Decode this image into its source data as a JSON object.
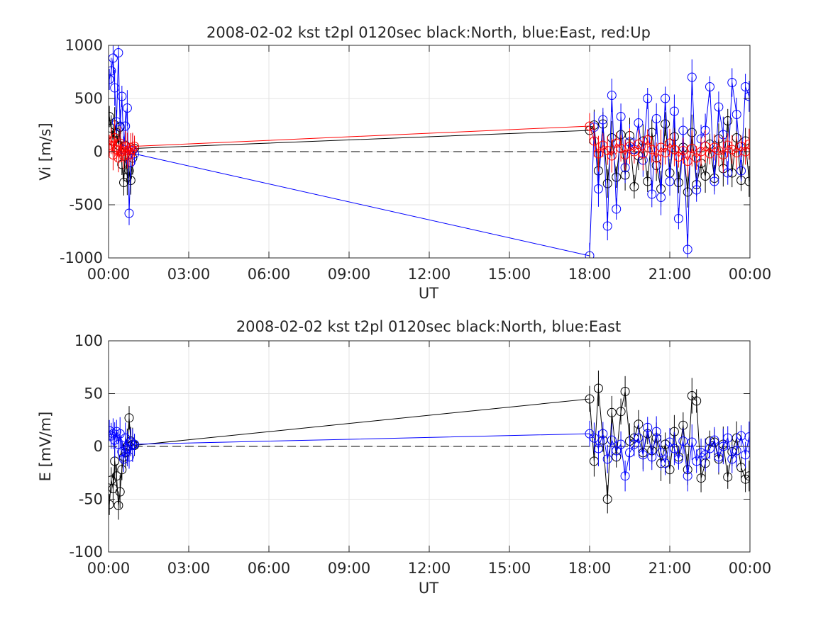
{
  "chart_data": [
    {
      "type": "line",
      "title": "2008-02-02 kst t2pl 0120sec black:North, blue:East, red:Up",
      "xlabel": "UT",
      "ylabel": "Vi [m/s]",
      "xlim_hours": [
        0,
        24
      ],
      "ylim": [
        -1000,
        1000
      ],
      "xtick_labels": [
        "00:00",
        "03:00",
        "06:00",
        "09:00",
        "12:00",
        "15:00",
        "18:00",
        "21:00",
        "00:00"
      ],
      "ytick_values": [
        -1000,
        -500,
        0,
        500,
        1000
      ],
      "ytick_labels": [
        "-1000",
        "-500",
        "0",
        "500",
        "1000"
      ],
      "grid": true,
      "zero_line": "dashed",
      "series": [
        {
          "name": "North",
          "color": "#000000",
          "x_hours": [
            0.03,
            0.1,
            0.17,
            0.23,
            0.3,
            0.37,
            0.43,
            0.5,
            0.57,
            0.63,
            0.7,
            0.77,
            0.83,
            0.9,
            0.97,
            18.0,
            18.17,
            18.33,
            18.5,
            18.67,
            18.83,
            19.0,
            19.17,
            19.33,
            19.5,
            19.67,
            19.83,
            20.0,
            20.17,
            20.33,
            20.5,
            20.67,
            20.83,
            21.0,
            21.17,
            21.33,
            21.5,
            21.67,
            21.83,
            22.0,
            22.17,
            22.33,
            22.5,
            22.67,
            22.83,
            23.0,
            23.17,
            23.33,
            23.5,
            23.67,
            23.83,
            23.97
          ],
          "values": [
            330,
            220,
            100,
            250,
            180,
            60,
            230,
            -120,
            -290,
            60,
            -240,
            -180,
            -270,
            -60,
            30,
            200,
            250,
            -180,
            260,
            -300,
            130,
            -240,
            160,
            -220,
            150,
            -330,
            -40,
            100,
            -280,
            180,
            -130,
            -350,
            260,
            -200,
            140,
            -290,
            40,
            -380,
            180,
            -310,
            -110,
            -230,
            70,
            -250,
            120,
            -160,
            290,
            -200,
            130,
            -270,
            100,
            -280
          ],
          "error_bars": true
        },
        {
          "name": "East",
          "color": "#0000ff",
          "x_hours": [
            0.03,
            0.1,
            0.17,
            0.23,
            0.3,
            0.37,
            0.43,
            0.5,
            0.57,
            0.63,
            0.7,
            0.77,
            0.83,
            0.9,
            0.97,
            18.0,
            18.17,
            18.33,
            18.5,
            18.67,
            18.83,
            19.0,
            19.17,
            19.33,
            19.5,
            19.67,
            19.83,
            20.0,
            20.17,
            20.33,
            20.5,
            20.67,
            20.83,
            21.0,
            21.17,
            21.33,
            21.5,
            21.67,
            21.83,
            22.0,
            22.17,
            22.33,
            22.5,
            22.67,
            22.83,
            23.0,
            23.17,
            23.33,
            23.5,
            23.67,
            23.83,
            23.97
          ],
          "values": [
            680,
            760,
            880,
            600,
            280,
            930,
            240,
            520,
            20,
            240,
            410,
            -580,
            -100,
            10,
            -20,
            -980,
            230,
            -350,
            300,
            -700,
            530,
            -540,
            330,
            -150,
            90,
            20,
            270,
            -80,
            500,
            -400,
            310,
            -430,
            500,
            -280,
            380,
            -630,
            200,
            -920,
            700,
            -360,
            120,
            200,
            610,
            -280,
            420,
            160,
            -200,
            650,
            350,
            -180,
            610,
            520
          ],
          "error_bars": true
        },
        {
          "name": "Up",
          "color": "#ff0000",
          "x_hours": [
            0.03,
            0.1,
            0.17,
            0.23,
            0.3,
            0.37,
            0.43,
            0.5,
            0.57,
            0.63,
            0.7,
            0.77,
            0.83,
            0.9,
            0.97,
            18.0,
            18.17,
            18.33,
            18.5,
            18.67,
            18.83,
            19.0,
            19.17,
            19.33,
            19.5,
            19.67,
            19.83,
            20.0,
            20.17,
            20.33,
            20.5,
            20.67,
            20.83,
            21.0,
            21.17,
            21.33,
            21.5,
            21.67,
            21.83,
            22.0,
            22.17,
            22.33,
            22.5,
            22.67,
            22.83,
            23.0,
            23.17,
            23.33,
            23.5,
            23.67,
            23.83,
            23.97
          ],
          "values": [
            60,
            100,
            -30,
            130,
            20,
            -60,
            80,
            0,
            -40,
            50,
            10,
            -30,
            40,
            20,
            50,
            240,
            100,
            -20,
            60,
            10,
            -40,
            80,
            30,
            -30,
            50,
            0,
            70,
            -20,
            110,
            20,
            -60,
            40,
            -10,
            80,
            20,
            -50,
            10,
            -90,
            30,
            -60,
            0,
            50,
            -20,
            40,
            10,
            -30,
            60,
            20,
            -10,
            50,
            0,
            70
          ],
          "error_bars": true
        }
      ]
    },
    {
      "type": "line",
      "title": "2008-02-02 kst t2pl 0120sec black:North, blue:East",
      "xlabel": "UT",
      "ylabel": "E [mV/m]",
      "xlim_hours": [
        0,
        24
      ],
      "ylim": [
        -100,
        100
      ],
      "xtick_labels": [
        "00:00",
        "03:00",
        "06:00",
        "09:00",
        "12:00",
        "15:00",
        "18:00",
        "21:00",
        "00:00"
      ],
      "ytick_values": [
        -100,
        -50,
        0,
        50,
        100
      ],
      "ytick_labels": [
        "-100",
        "-50",
        "0",
        "50",
        "100"
      ],
      "grid": true,
      "zero_line": "dashed",
      "series": [
        {
          "name": "North",
          "color": "#000000",
          "x_hours": [
            0.03,
            0.1,
            0.17,
            0.23,
            0.3,
            0.37,
            0.43,
            0.5,
            0.57,
            0.63,
            0.7,
            0.77,
            0.83,
            0.9,
            0.97,
            18.0,
            18.17,
            18.33,
            18.5,
            18.67,
            18.83,
            19.0,
            19.17,
            19.33,
            19.5,
            19.67,
            19.83,
            20.0,
            20.17,
            20.33,
            20.5,
            20.67,
            20.83,
            21.0,
            21.17,
            21.33,
            21.5,
            21.67,
            21.83,
            22.0,
            22.17,
            22.33,
            22.5,
            22.67,
            22.83,
            23.0,
            23.17,
            23.33,
            23.5,
            23.67,
            23.83,
            23.97
          ],
          "values": [
            -55,
            -32,
            -40,
            -14,
            -28,
            -56,
            -43,
            -22,
            -10,
            -6,
            0,
            27,
            5,
            2,
            1,
            45,
            -14,
            55,
            6,
            -50,
            32,
            -10,
            33,
            52,
            5,
            8,
            21,
            -6,
            12,
            -4,
            8,
            -16,
            2,
            -22,
            14,
            -10,
            20,
            -22,
            48,
            43,
            -30,
            -16,
            5,
            4,
            -12,
            2,
            -29,
            -5,
            8,
            -20,
            -31,
            -28
          ],
          "error_bars": true
        },
        {
          "name": "East",
          "color": "#0000ff",
          "x_hours": [
            0.03,
            0.1,
            0.17,
            0.23,
            0.3,
            0.37,
            0.43,
            0.5,
            0.57,
            0.63,
            0.7,
            0.77,
            0.83,
            0.9,
            0.97,
            18.0,
            18.17,
            18.33,
            18.5,
            18.67,
            18.83,
            19.0,
            19.17,
            19.33,
            19.5,
            19.67,
            19.83,
            20.0,
            20.17,
            20.33,
            20.5,
            20.67,
            20.83,
            21.0,
            21.17,
            21.33,
            21.5,
            21.67,
            21.83,
            22.0,
            22.17,
            22.33,
            22.5,
            22.67,
            22.83,
            23.0,
            23.17,
            23.33,
            23.5,
            23.67,
            23.83,
            23.97
          ],
          "values": [
            15,
            10,
            12,
            6,
            14,
            2,
            12,
            -5,
            -12,
            8,
            -2,
            -10,
            4,
            1,
            2,
            12,
            8,
            -2,
            12,
            -12,
            6,
            -4,
            2,
            -28,
            -6,
            2,
            8,
            -8,
            18,
            -10,
            14,
            -6,
            -16,
            4,
            -2,
            -12,
            5,
            -28,
            4,
            -14,
            -6,
            -8,
            -2,
            6,
            -10,
            0,
            8,
            -12,
            -4,
            10,
            -8,
            9
          ],
          "error_bars": true
        }
      ]
    }
  ]
}
